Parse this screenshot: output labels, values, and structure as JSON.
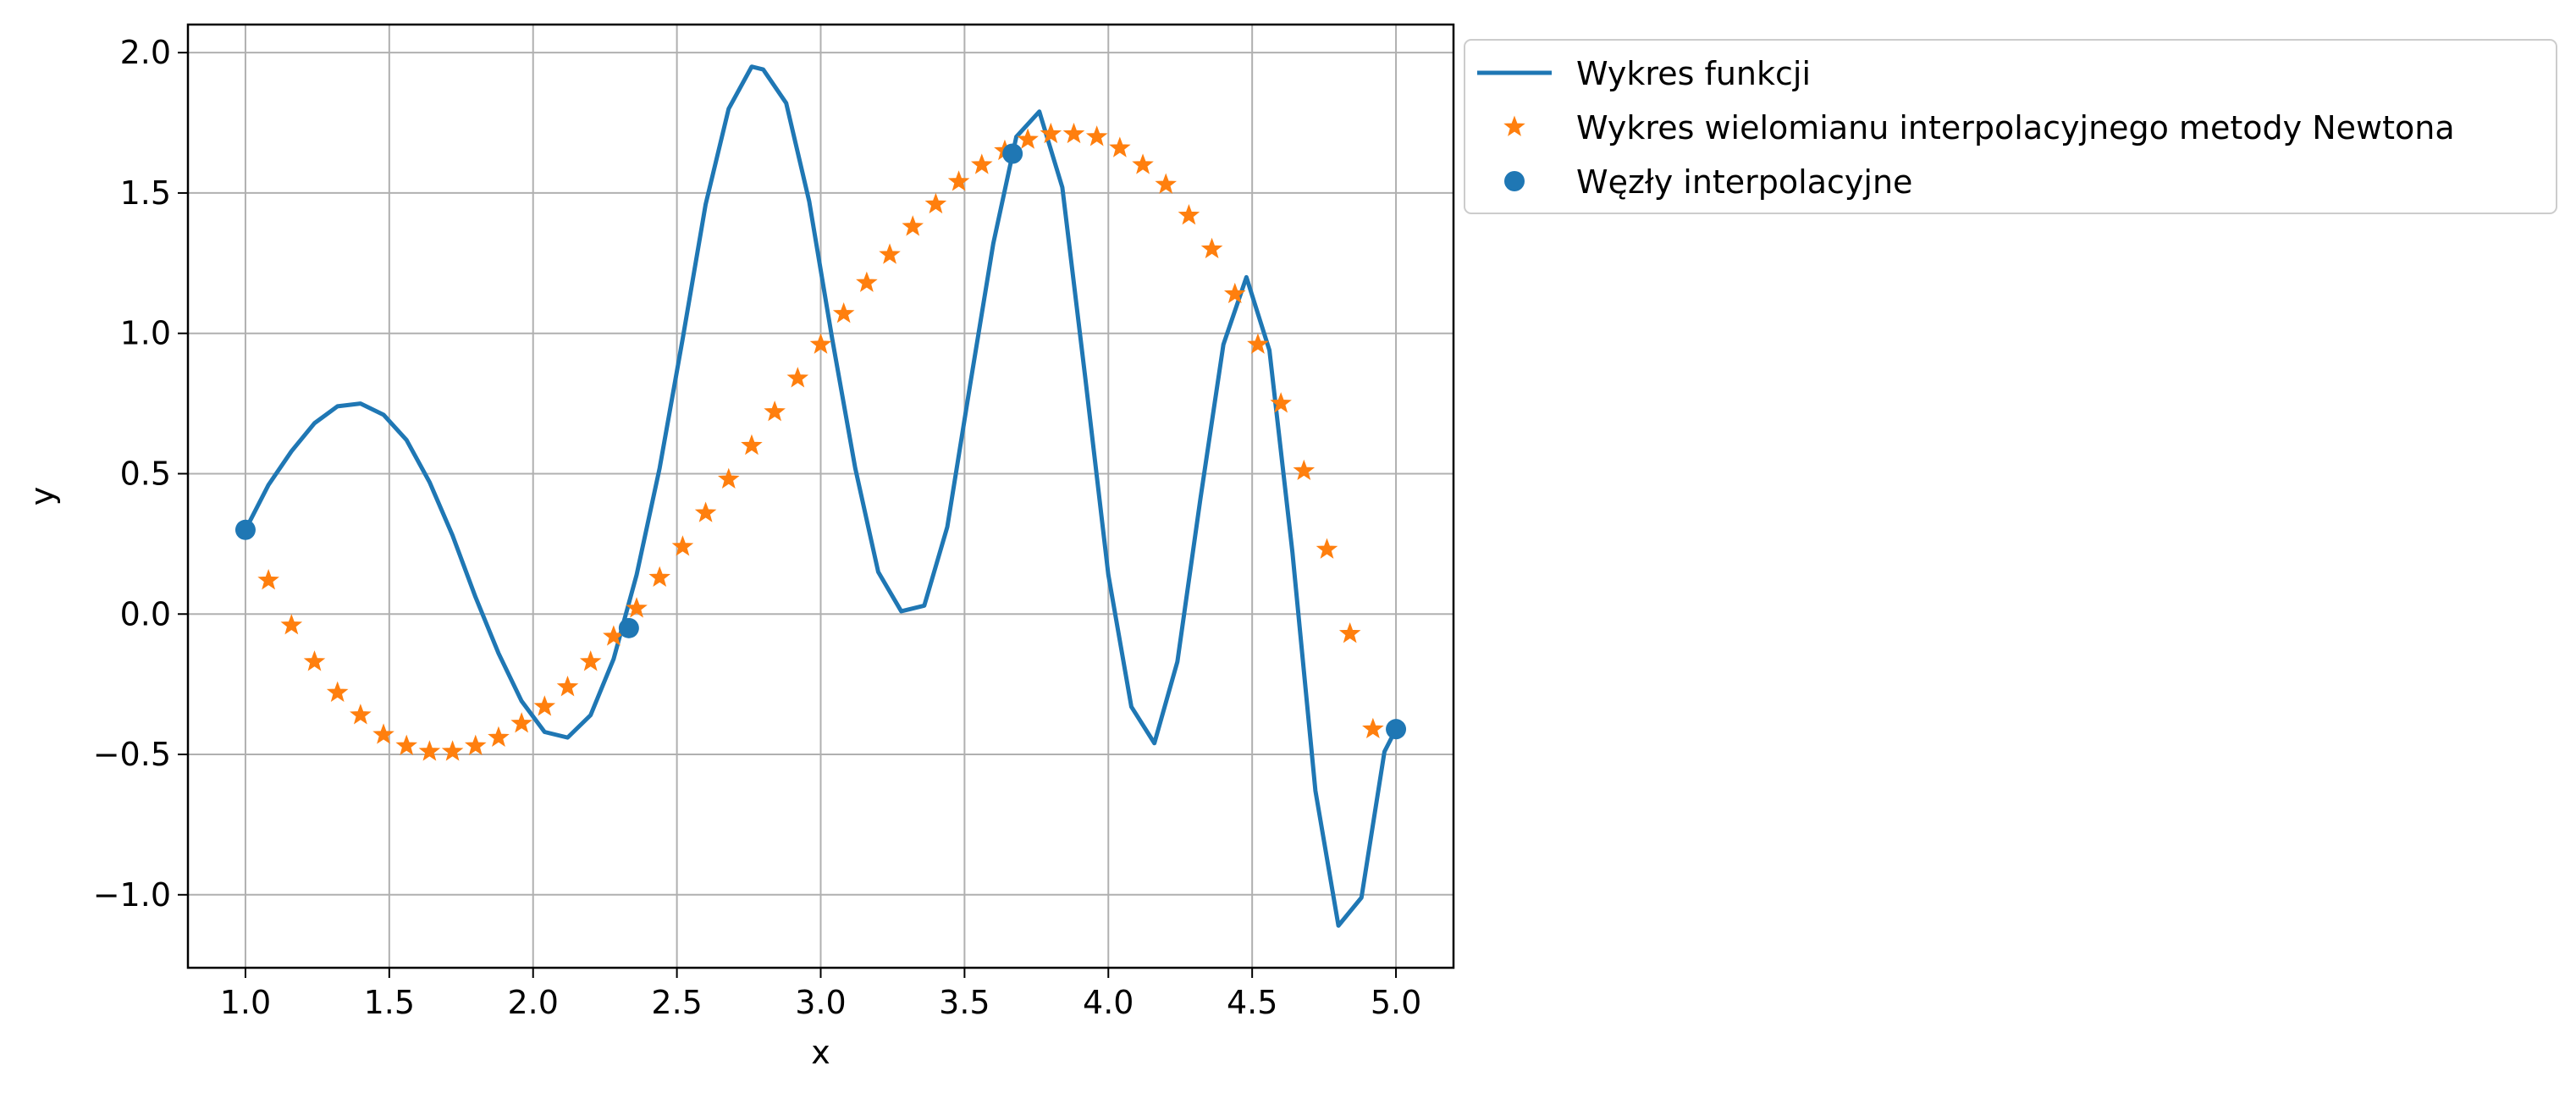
{
  "chart_data": {
    "type": "line",
    "title": "",
    "xlabel": "x",
    "ylabel": "y",
    "xlim": [
      0.8,
      5.2
    ],
    "ylim": [
      -1.26,
      2.1
    ],
    "xticks": [
      1.0,
      1.5,
      2.0,
      2.5,
      3.0,
      3.5,
      4.0,
      4.5,
      5.0
    ],
    "xtick_labels": [
      "1.0",
      "1.5",
      "2.0",
      "2.5",
      "3.0",
      "3.5",
      "4.0",
      "4.5",
      "5.0"
    ],
    "yticks": [
      -1.0,
      -0.5,
      0.0,
      0.5,
      1.0,
      1.5,
      2.0
    ],
    "ytick_labels": [
      "−1.0",
      "−0.5",
      "0.0",
      "0.5",
      "1.0",
      "1.5",
      "2.0"
    ],
    "grid": true,
    "legend_position": "outside top-right",
    "series": [
      {
        "name": "Wykres funkcji",
        "kind": "line",
        "color": "#1f77b4",
        "x": [
          1.0,
          1.08,
          1.16,
          1.24,
          1.32,
          1.4,
          1.48,
          1.56,
          1.64,
          1.72,
          1.8,
          1.88,
          1.96,
          2.04,
          2.12,
          2.2,
          2.28,
          2.36,
          2.44,
          2.52,
          2.6,
          2.68,
          2.76,
          2.8,
          2.88,
          2.96,
          3.04,
          3.12,
          3.2,
          3.28,
          3.36,
          3.44,
          3.52,
          3.6,
          3.68,
          3.76,
          3.84,
          3.92,
          4.0,
          4.08,
          4.16,
          4.24,
          4.32,
          4.4,
          4.48,
          4.56,
          4.64,
          4.72,
          4.8,
          4.88,
          4.96,
          5.0
        ],
        "y": [
          0.3,
          0.46,
          0.58,
          0.68,
          0.74,
          0.75,
          0.71,
          0.62,
          0.47,
          0.28,
          0.06,
          -0.14,
          -0.31,
          -0.42,
          -0.44,
          -0.36,
          -0.16,
          0.14,
          0.52,
          0.98,
          1.46,
          1.8,
          1.95,
          1.94,
          1.82,
          1.47,
          0.98,
          0.52,
          0.15,
          0.01,
          0.03,
          0.31,
          0.82,
          1.32,
          1.7,
          1.79,
          1.52,
          0.84,
          0.14,
          -0.33,
          -0.46,
          -0.17,
          0.41,
          0.96,
          1.2,
          0.94,
          0.22,
          -0.63,
          -1.11,
          -1.01,
          -0.49,
          -0.41
        ]
      },
      {
        "name": "Wykres wielomianu interpolacyjnego metody Newtona",
        "kind": "scatter",
        "marker": "star",
        "color": "#ff7f0e",
        "x": [
          1.08,
          1.16,
          1.24,
          1.32,
          1.4,
          1.48,
          1.56,
          1.64,
          1.72,
          1.8,
          1.88,
          1.96,
          2.04,
          2.12,
          2.2,
          2.28,
          2.36,
          2.44,
          2.52,
          2.6,
          2.68,
          2.76,
          2.84,
          2.92,
          3.0,
          3.08,
          3.16,
          3.24,
          3.32,
          3.4,
          3.48,
          3.56,
          3.64,
          3.72,
          3.8,
          3.88,
          3.96,
          4.04,
          4.12,
          4.2,
          4.28,
          4.36,
          4.44,
          4.52,
          4.6,
          4.68,
          4.76,
          4.84,
          4.92
        ],
        "y": [
          0.12,
          -0.04,
          -0.17,
          -0.28,
          -0.36,
          -0.43,
          -0.47,
          -0.49,
          -0.49,
          -0.47,
          -0.44,
          -0.39,
          -0.33,
          -0.26,
          -0.17,
          -0.08,
          0.02,
          0.13,
          0.24,
          0.36,
          0.48,
          0.6,
          0.72,
          0.84,
          0.96,
          1.07,
          1.18,
          1.28,
          1.38,
          1.46,
          1.54,
          1.6,
          1.65,
          1.69,
          1.71,
          1.71,
          1.7,
          1.66,
          1.6,
          1.53,
          1.42,
          1.3,
          1.14,
          0.96,
          0.75,
          0.51,
          0.23,
          -0.07,
          -0.41
        ]
      },
      {
        "name": "Węzły interpolacyjne",
        "kind": "scatter",
        "marker": "circle",
        "color": "#1f77b4",
        "x": [
          1.0,
          2.333,
          3.667,
          5.0
        ],
        "y": [
          0.3,
          -0.05,
          1.64,
          -0.41
        ]
      }
    ]
  }
}
